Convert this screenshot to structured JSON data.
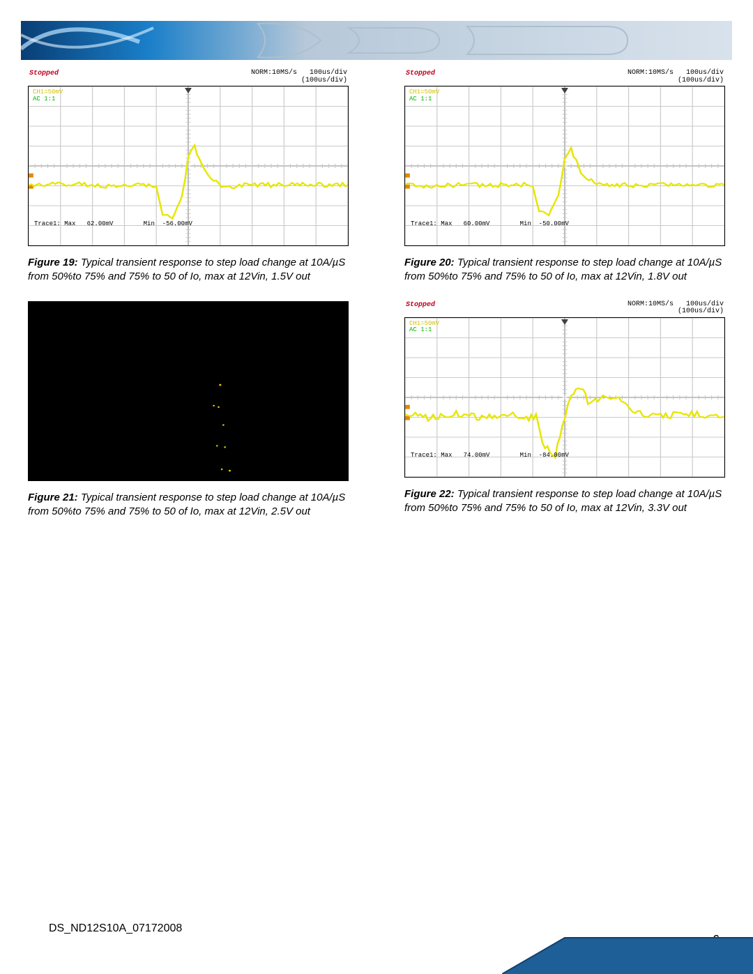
{
  "header": {
    "band_gradient_from": "#0b4a8a",
    "band_gradient_mid": "#0e6aa8",
    "band_gradient_to": "#c9d6e2"
  },
  "scope_common": {
    "status": "Stopped",
    "sample_rate": "NORM:10MS/s",
    "timebase_line1": "100us/div",
    "timebase_line2": "(100us/div)",
    "ch_label": "CH1=50mV",
    "coupling": "AC 1:1",
    "grid_color": "#c9c9c9",
    "signal_color": "#e6e600",
    "background_color": "#ffffff",
    "signal_line_width": 2.2,
    "grid_rows": 8,
    "grid_cols": 10
  },
  "figures": [
    {
      "id": "fig19",
      "type": "oscilloscope",
      "caption_label": "Figure 19:",
      "caption_text": " Typical transient response to step load change at 10A/µS from 50%to 75% and 75% to 50 of Io, max at 12Vin, 1.5V out",
      "trace_max_label": "Trace1: Max",
      "trace_max_value": "62.00mV",
      "trace_min_label": "Min",
      "trace_min_value": "-56.00mV",
      "waveform": [
        [
          0,
          0.62
        ],
        [
          0.1,
          0.61
        ],
        [
          0.2,
          0.62
        ],
        [
          0.3,
          0.63
        ],
        [
          0.36,
          0.62
        ],
        [
          0.4,
          0.62
        ],
        [
          0.42,
          0.8
        ],
        [
          0.45,
          0.84
        ],
        [
          0.48,
          0.7
        ],
        [
          0.5,
          0.44
        ],
        [
          0.52,
          0.38
        ],
        [
          0.55,
          0.52
        ],
        [
          0.58,
          0.6
        ],
        [
          0.62,
          0.63
        ],
        [
          0.7,
          0.62
        ],
        [
          0.8,
          0.62
        ],
        [
          0.9,
          0.62
        ],
        [
          1.0,
          0.62
        ]
      ],
      "noise_amp": 0.015,
      "black": false
    },
    {
      "id": "fig20",
      "type": "oscilloscope",
      "caption_label": "Figure 20:",
      "caption_text": " Typical transient response to step load change at 10A/µS from 50%to 75% and 75% to 50 of Io, max at 12Vin, 1.8V out",
      "trace_max_label": "Trace1: Max",
      "trace_max_value": "60.00mV",
      "trace_min_label": "Min",
      "trace_min_value": "-50.00mV",
      "waveform": [
        [
          0,
          0.62
        ],
        [
          0.1,
          0.625
        ],
        [
          0.2,
          0.62
        ],
        [
          0.3,
          0.62
        ],
        [
          0.38,
          0.62
        ],
        [
          0.4,
          0.62
        ],
        [
          0.42,
          0.78
        ],
        [
          0.45,
          0.82
        ],
        [
          0.48,
          0.68
        ],
        [
          0.5,
          0.46
        ],
        [
          0.52,
          0.4
        ],
        [
          0.55,
          0.54
        ],
        [
          0.6,
          0.62
        ],
        [
          0.68,
          0.62
        ],
        [
          0.8,
          0.62
        ],
        [
          1.0,
          0.62
        ]
      ],
      "noise_amp": 0.015,
      "black": false
    },
    {
      "id": "fig21",
      "type": "oscilloscope",
      "caption_label": "Figure 21:",
      "caption_text": " Typical transient response to step load change at 10A/µS from 50%to 75% and 75% to 50 of Io, max at 12Vin, 2.5V out",
      "trace_max_label": "",
      "trace_max_value": "",
      "trace_min_label": "",
      "trace_min_value": "",
      "waveform": [],
      "noise_amp": 0,
      "black": true
    },
    {
      "id": "fig22",
      "type": "oscilloscope",
      "caption_label": "Figure 22:",
      "caption_text": " Typical transient response to step load change at 10A/µS from 50%to 75% and 75% to 50 of Io, max at 12Vin, 3.3V out",
      "trace_max_label": "Trace1: Max",
      "trace_max_value": "74.00mV",
      "trace_min_label": "Min",
      "trace_min_value": "-84.00mV",
      "waveform": [
        [
          0,
          0.6
        ],
        [
          0.08,
          0.63
        ],
        [
          0.16,
          0.6
        ],
        [
          0.24,
          0.63
        ],
        [
          0.32,
          0.605
        ],
        [
          0.38,
          0.63
        ],
        [
          0.41,
          0.62
        ],
        [
          0.43,
          0.8
        ],
        [
          0.47,
          0.86
        ],
        [
          0.5,
          0.62
        ],
        [
          0.52,
          0.48
        ],
        [
          0.55,
          0.44
        ],
        [
          0.58,
          0.55
        ],
        [
          0.62,
          0.49
        ],
        [
          0.66,
          0.5
        ],
        [
          0.72,
          0.6
        ],
        [
          0.8,
          0.62
        ],
        [
          0.88,
          0.6
        ],
        [
          1.0,
          0.62
        ]
      ],
      "noise_amp": 0.02,
      "black": false
    }
  ],
  "footer": {
    "doc_code": "DS_ND12S10A_07172008",
    "page_number": "6"
  }
}
